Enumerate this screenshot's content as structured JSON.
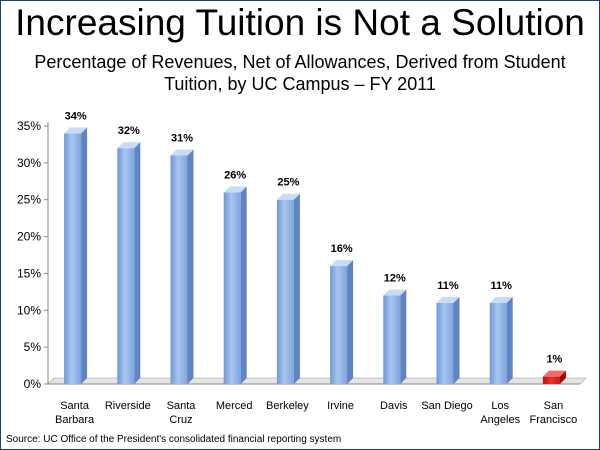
{
  "title": "Increasing Tuition is Not a Solution",
  "subtitle_line1": "Percentage of Revenues, Net of Allowances, Derived from Student",
  "subtitle_line2": "Tuition, by UC Campus – FY 2011",
  "source": "Source: UC Office of the President's consolidated financial reporting system",
  "colors": {
    "bar": "#8fb4e8",
    "highlight_bar": "#e11b1b",
    "frame": "#1f3f7a"
  },
  "chart_data": {
    "type": "bar",
    "title": "Percentage of Revenues, Net of Allowances, Derived from Student Tuition, by UC Campus – FY 2011",
    "categories": [
      "Santa Barbara",
      "Riverside",
      "Santa Cruz",
      "Merced",
      "Berkeley",
      "Irvine",
      "Davis",
      "San Diego",
      "Los Angeles",
      "San Francisco"
    ],
    "category_lines": [
      [
        "Santa",
        "Barbara"
      ],
      [
        "Riverside"
      ],
      [
        "Santa",
        "Cruz"
      ],
      [
        "Merced"
      ],
      [
        "Berkeley"
      ],
      [
        "Irvine"
      ],
      [
        "Davis"
      ],
      [
        "San Diego"
      ],
      [
        "Los",
        "Angeles"
      ],
      [
        "San",
        "Francisco"
      ]
    ],
    "values": [
      34,
      32,
      31,
      26,
      25,
      16,
      12,
      11,
      11,
      1
    ],
    "data_labels": [
      "34%",
      "32%",
      "31%",
      "26%",
      "25%",
      "16%",
      "12%",
      "11%",
      "11%",
      "1%"
    ],
    "highlight_index": 9,
    "ylim": [
      0,
      35
    ],
    "yticks": [
      0,
      5,
      10,
      15,
      20,
      25,
      30,
      35
    ],
    "ytick_labels": [
      "0%",
      "5%",
      "10%",
      "15%",
      "20%",
      "25%",
      "30%",
      "35%"
    ],
    "xlabel": "",
    "ylabel": "",
    "grid": false,
    "legend": "none"
  }
}
